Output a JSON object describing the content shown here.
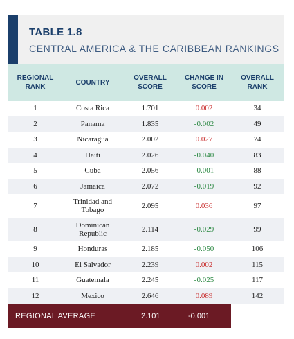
{
  "title": "TABLE 1.8",
  "subtitle": "CENTRAL AMERICA & THE CARIBBEAN RANKINGS",
  "headers": {
    "regional_rank": "REGIONAL RANK",
    "country": "COUNTRY",
    "overall_score": "OVERALL SCORE",
    "change_in_score": "CHANGE IN SCORE",
    "overall_rank": "OVERALL RANK"
  },
  "rows": [
    {
      "rank": "1",
      "country": "Costa Rica",
      "score": "1.701",
      "change": "0.002",
      "overall": "34"
    },
    {
      "rank": "2",
      "country": "Panama",
      "score": "1.835",
      "change": "-0.002",
      "overall": "49"
    },
    {
      "rank": "3",
      "country": "Nicaragua",
      "score": "2.002",
      "change": "0.027",
      "overall": "74"
    },
    {
      "rank": "4",
      "country": "Haiti",
      "score": "2.026",
      "change": "-0.040",
      "overall": "83"
    },
    {
      "rank": "5",
      "country": "Cuba",
      "score": "2.056",
      "change": "-0.001",
      "overall": "88"
    },
    {
      "rank": "6",
      "country": "Jamaica",
      "score": "2.072",
      "change": "-0.019",
      "overall": "92"
    },
    {
      "rank": "7",
      "country": "Trinidad and Tobago",
      "score": "2.095",
      "change": "0.036",
      "overall": "97"
    },
    {
      "rank": "8",
      "country": "Dominican Republic",
      "score": "2.114",
      "change": "-0.029",
      "overall": "99"
    },
    {
      "rank": "9",
      "country": "Honduras",
      "score": "2.185",
      "change": "-0.050",
      "overall": "106"
    },
    {
      "rank": "10",
      "country": "El Salvador",
      "score": "2.239",
      "change": "0.002",
      "overall": "115"
    },
    {
      "rank": "11",
      "country": "Guatemala",
      "score": "2.245",
      "change": "-0.025",
      "overall": "117"
    },
    {
      "rank": "12",
      "country": "Mexico",
      "score": "2.646",
      "change": "0.089",
      "overall": "142"
    }
  ],
  "regional_average": {
    "label": "REGIONAL AVERAGE",
    "score": "2.101",
    "change": "-0.001"
  },
  "colors": {
    "accent": "#1b3f6b",
    "header_bg": "#cfe8e3",
    "positive_change": "#c82a2a",
    "negative_change": "#2e8a45",
    "footer_bg": "#6b1a24"
  }
}
